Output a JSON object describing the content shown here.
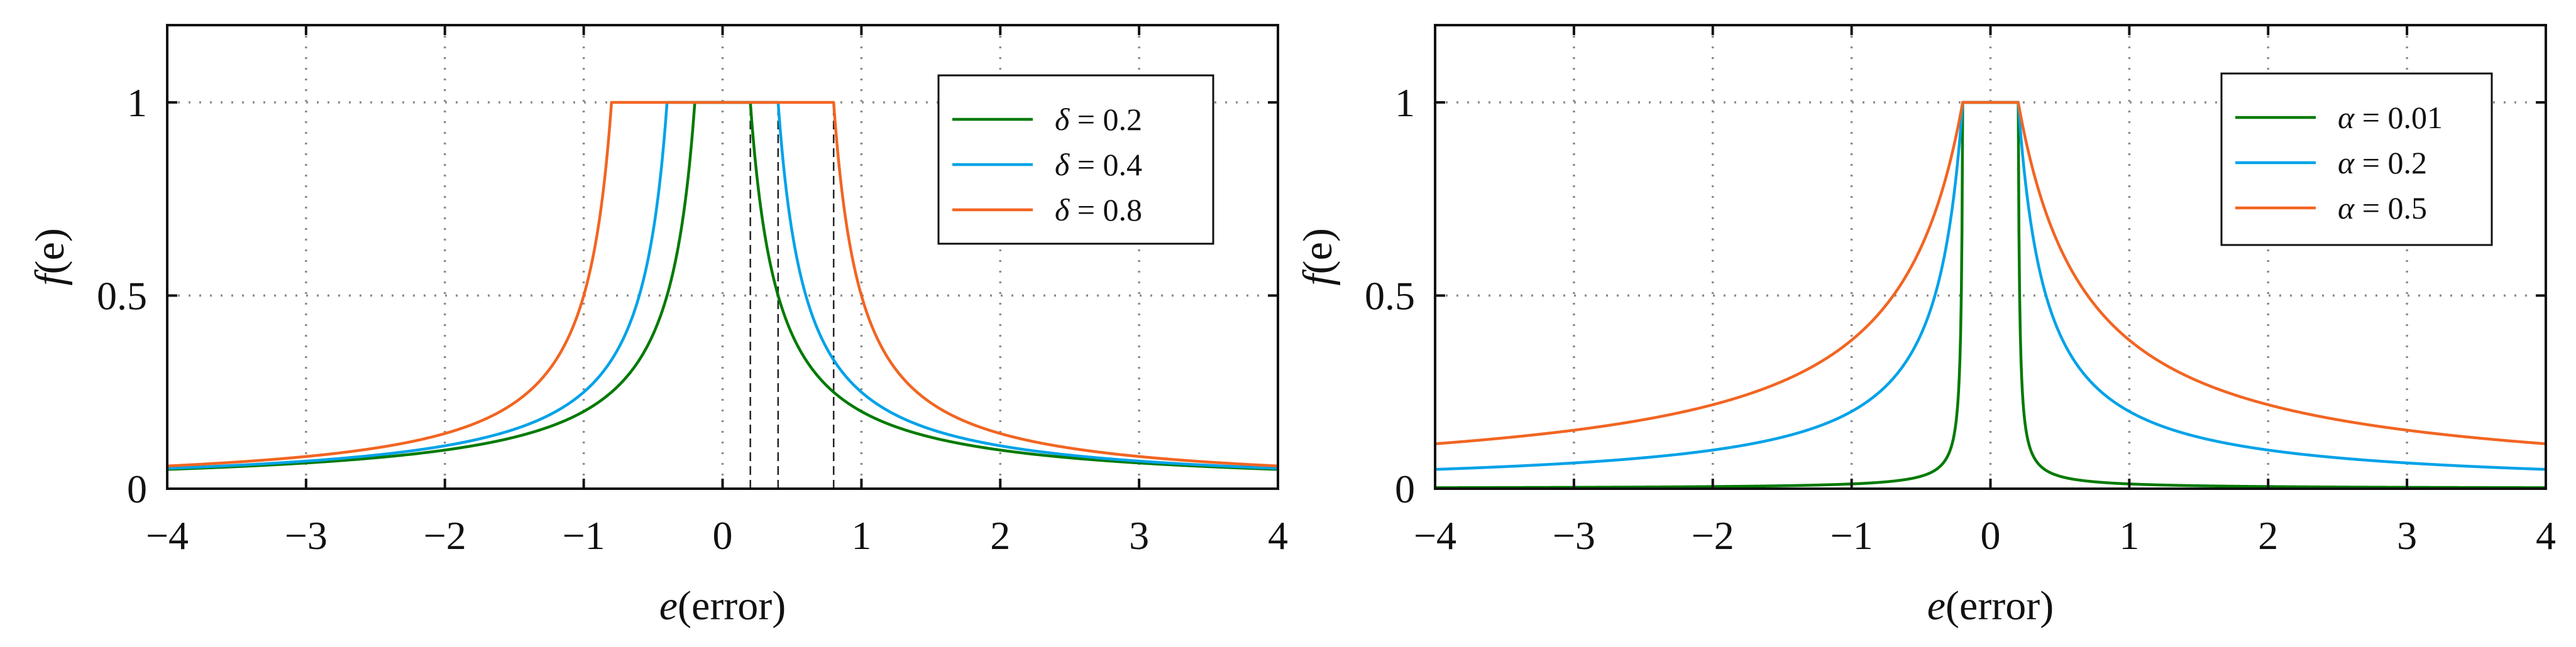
{
  "chart_data": [
    {
      "type": "line",
      "title": "",
      "xlabel": "e(error)",
      "xlabel_italic_part": "e",
      "xlabel_rest": "(error)",
      "ylabel": "f(e)",
      "ylabel_italic_part": "f",
      "ylabel_rest": "(e)",
      "xlim": [
        -4,
        4
      ],
      "ylim": [
        0,
        1.2
      ],
      "xticks": [
        -4,
        -3,
        -2,
        -1,
        0,
        1,
        2,
        3,
        4
      ],
      "xtick_labels": [
        "−4",
        "−3",
        "−2",
        "−1",
        "0",
        "1",
        "2",
        "3",
        "4"
      ],
      "yticks": [
        0,
        0.5,
        1
      ],
      "ytick_labels": [
        "0",
        "0.5",
        "1"
      ],
      "grid": true,
      "legend_position": "top-right",
      "series": [
        {
          "name": "δ = 0.2",
          "greek": "δ",
          "value_label": " = 0.2",
          "color": "#007a00",
          "delta": 0.2,
          "alpha": 0.2
        },
        {
          "name": "δ = 0.4",
          "greek": "δ",
          "value_label": " = 0.4",
          "color": "#00a2e8",
          "delta": 0.4,
          "alpha": 0.2
        },
        {
          "name": "δ = 0.8",
          "greek": "δ",
          "value_label": " = 0.8",
          "color": "#f26522",
          "delta": 0.8,
          "alpha": 0.2
        }
      ],
      "vertical_markers": [
        0.2,
        0.4,
        0.8
      ]
    },
    {
      "type": "line",
      "title": "",
      "xlabel": "e(error)",
      "xlabel_italic_part": "e",
      "xlabel_rest": "(error)",
      "ylabel": "f(e)",
      "ylabel_italic_part": "f",
      "ylabel_rest": "(e)",
      "xlim": [
        -4,
        4
      ],
      "ylim": [
        0,
        1.2
      ],
      "xticks": [
        -4,
        -3,
        -2,
        -1,
        0,
        1,
        2,
        3,
        4
      ],
      "xtick_labels": [
        "−4",
        "−3",
        "−2",
        "−1",
        "0",
        "1",
        "2",
        "3",
        "4"
      ],
      "yticks": [
        0,
        0.5,
        1
      ],
      "ytick_labels": [
        "0",
        "0.5",
        "1"
      ],
      "grid": true,
      "legend_position": "top-right",
      "series": [
        {
          "name": "α = 0.01",
          "greek": "α",
          "value_label": " = 0.01",
          "color": "#007a00",
          "delta": 0.2,
          "alpha": 0.01
        },
        {
          "name": "α = 0.2",
          "greek": "α",
          "value_label": " = 0.2",
          "color": "#00a2e8",
          "delta": 0.2,
          "alpha": 0.2
        },
        {
          "name": "α = 0.5",
          "greek": "α",
          "value_label": " = 0.5",
          "color": "#f26522",
          "delta": 0.2,
          "alpha": 0.5
        }
      ],
      "vertical_markers": []
    }
  ]
}
